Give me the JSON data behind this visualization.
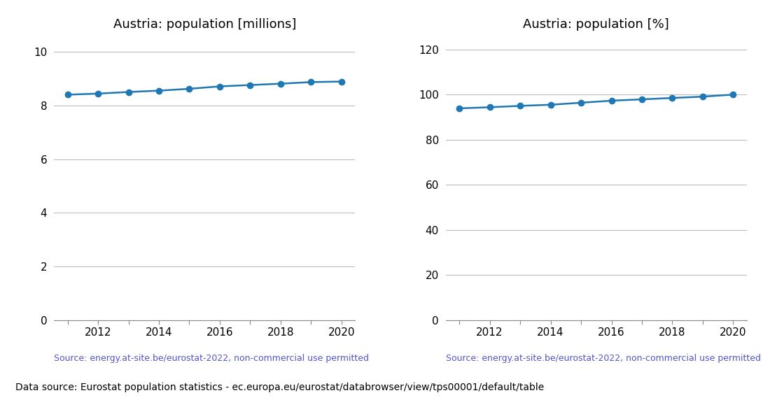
{
  "years": [
    2011,
    2012,
    2013,
    2014,
    2015,
    2016,
    2017,
    2018,
    2019,
    2020
  ],
  "population_millions": [
    8.41,
    8.45,
    8.51,
    8.56,
    8.63,
    8.72,
    8.77,
    8.82,
    8.88,
    8.9
  ],
  "population_percent": [
    93.9,
    94.4,
    95.0,
    95.5,
    96.4,
    97.3,
    97.9,
    98.5,
    99.1,
    100.0
  ],
  "title_left": "Austria: population [millions]",
  "title_right": "Austria: population [%]",
  "line_color": "#1f77b4",
  "marker": "o",
  "markersize": 6,
  "linewidth": 1.8,
  "source_text": "Source: energy.at-site.be/eurostat-2022, non-commercial use permitted",
  "source_color": "#5555cc",
  "footer_text": "Data source: Eurostat population statistics - ec.europa.eu/eurostat/databrowser/view/tps00001/default/table",
  "footer_color": "#000000",
  "ylim_left": [
    0,
    10.6
  ],
  "ylim_right": [
    0,
    126
  ],
  "yticks_left": [
    0,
    2,
    4,
    6,
    8,
    10
  ],
  "yticks_right": [
    0,
    20,
    40,
    60,
    80,
    100,
    120
  ],
  "xticks": [
    2011,
    2012,
    2013,
    2014,
    2015,
    2016,
    2017,
    2018,
    2019,
    2020
  ],
  "xtick_labels": [
    "",
    "2012",
    "",
    "2014",
    "",
    "2016",
    "",
    "2018",
    "",
    "2020"
  ],
  "grid_color": "#bbbbbb",
  "title_fontsize": 13,
  "tick_fontsize": 11,
  "source_fontsize": 9,
  "footer_fontsize": 10
}
